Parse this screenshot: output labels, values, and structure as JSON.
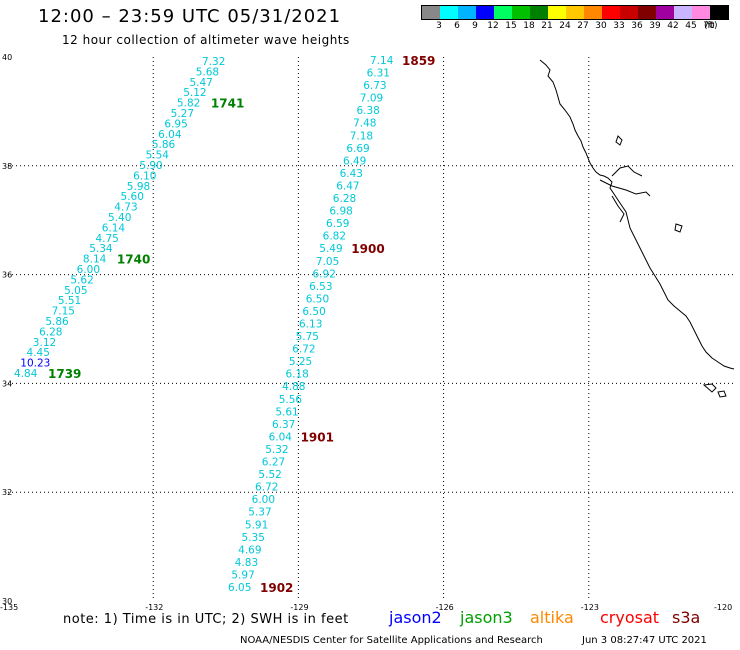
{
  "header": {
    "title": "12:00 – 23:59 UTC 05/31/2021",
    "subtitle": "12 hour collection of altimeter wave heights"
  },
  "scale": {
    "colors": [
      "#888888",
      "#00ffff",
      "#00b4ff",
      "#0000ff",
      "#00ff60",
      "#00c000",
      "#008000",
      "#ffff00",
      "#ffc800",
      "#ff8800",
      "#ff0000",
      "#c80000",
      "#800000",
      "#a000a0",
      "#c8b4ff",
      "#ff88e0",
      "#000000"
    ],
    "labels": [
      "3",
      "6",
      "9",
      "12",
      "15",
      "18",
      "21",
      "24",
      "27",
      "30",
      "33",
      "36",
      "39",
      "42",
      "45",
      "70"
    ],
    "unit": "(ft)"
  },
  "axes": {
    "lat_ticks": [
      "40",
      "38",
      "36",
      "34",
      "32",
      "30"
    ],
    "lon_ticks": [
      "-135",
      "-132",
      "-129",
      "-126",
      "-123",
      "-120"
    ]
  },
  "tracks": [
    {
      "name": "track-a",
      "values": [
        "7.32",
        "5.68",
        "5.47",
        "5.12",
        "5.82",
        "5.27",
        "6.95",
        "6.04",
        "5.86",
        "5.54",
        "5.90",
        "6.10",
        "5.98",
        "5.60",
        "4.73",
        "5.40",
        "6.14",
        "4.75",
        "5.34",
        "8.14",
        "6.00",
        "5.62",
        "5.05",
        "5.51",
        "7.15",
        "5.86",
        "6.28",
        "3.12",
        "4.45",
        "10.23",
        "4.84"
      ],
      "times": [
        {
          "label": "1741",
          "index": 4
        },
        {
          "label": "1740",
          "index": 19
        },
        {
          "label": "1739",
          "index": 30
        }
      ],
      "highlight_index": 29
    },
    {
      "name": "track-b",
      "values": [
        "7.14",
        "6.31",
        "6.73",
        "7.09",
        "6.38",
        "7.48",
        "7.18",
        "6.69",
        "6.49",
        "6.43",
        "6.47",
        "6.28",
        "6.98",
        "6.59",
        "6.82",
        "5.49",
        "7.05",
        "6.92",
        "6.53",
        "6.50",
        "6.50",
        "6.13",
        "5.75",
        "6.72",
        "5.25",
        "6.18",
        "4.88",
        "5.56",
        "5.61",
        "6.37",
        "6.04",
        "5.32",
        "6.27",
        "5.52",
        "6.72",
        "6.00",
        "5.37",
        "5.91",
        "5.35",
        "4.69",
        "4.83",
        "5.97",
        "6.05"
      ],
      "times": [
        {
          "label": "1859",
          "index": 0
        },
        {
          "label": "1900",
          "index": 15
        },
        {
          "label": "1901",
          "index": 30
        },
        {
          "label": "1902",
          "index": 42
        }
      ]
    }
  ],
  "footer": {
    "note": "note:  1) Time is in UTC;  2) SWH is in feet",
    "satellites": [
      {
        "name": "jason2",
        "color": "#0000ff"
      },
      {
        "name": "jason3",
        "color": "#00a000"
      },
      {
        "name": "altika",
        "color": "#ff8800"
      },
      {
        "name": "cryosat",
        "color": "#ff0000"
      },
      {
        "name": "s3a",
        "color": "#800000"
      }
    ],
    "credit": "NOAA/NESDIS Center for Satellite Applications and Research",
    "date": "Jun  3 08:27:47 UTC 2021"
  },
  "colors": {
    "track_text": "#00c8d8",
    "time_a": "#008000",
    "time_b": "#800000",
    "highlight": "#0000ff"
  }
}
